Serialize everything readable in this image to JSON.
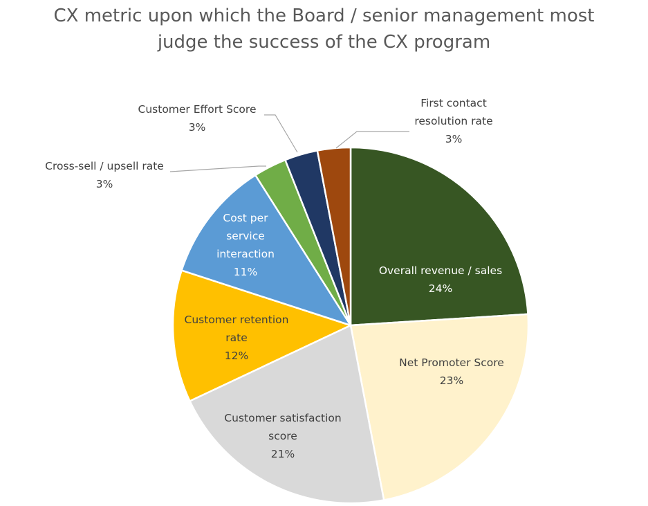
{
  "chart_data": {
    "type": "pie",
    "title_lines": [
      "CX metric upon which the Board / senior management most",
      "judge the success of the CX program"
    ],
    "slices": [
      {
        "name_lines": [
          "Overall revenue / sales"
        ],
        "value": 24,
        "label": "24%",
        "color": "#375623",
        "label_color": "#ffffff"
      },
      {
        "name_lines": [
          "Net Promoter  Score"
        ],
        "value": 23,
        "label": "23%",
        "color": "#FFF2CC",
        "label_color": "#404040"
      },
      {
        "name_lines": [
          "Customer satisfaction",
          "score"
        ],
        "value": 21,
        "label": "21%",
        "color": "#D9D9D9",
        "label_color": "#404040"
      },
      {
        "name_lines": [
          "Customer retention",
          "rate"
        ],
        "value": 12,
        "label": "12%",
        "color": "#FFC000",
        "label_color": "#404040"
      },
      {
        "name_lines": [
          "Cost per",
          "service",
          "interaction"
        ],
        "value": 11,
        "label": "11%",
        "color": "#5B9BD5",
        "label_color": "#ffffff"
      },
      {
        "name_lines": [
          "Cross-sell / upsell rate"
        ],
        "value": 3,
        "label": "3%",
        "color": "#70AD47",
        "label_color": "#404040"
      },
      {
        "name_lines": [
          "Customer  Effort Score"
        ],
        "value": 3,
        "label": "3%",
        "color": "#203864",
        "label_color": "#404040"
      },
      {
        "name_lines": [
          "First contact",
          "resolution rate"
        ],
        "value": 3,
        "label": "3%",
        "color": "#9E480E",
        "label_color": "#404040"
      }
    ]
  }
}
